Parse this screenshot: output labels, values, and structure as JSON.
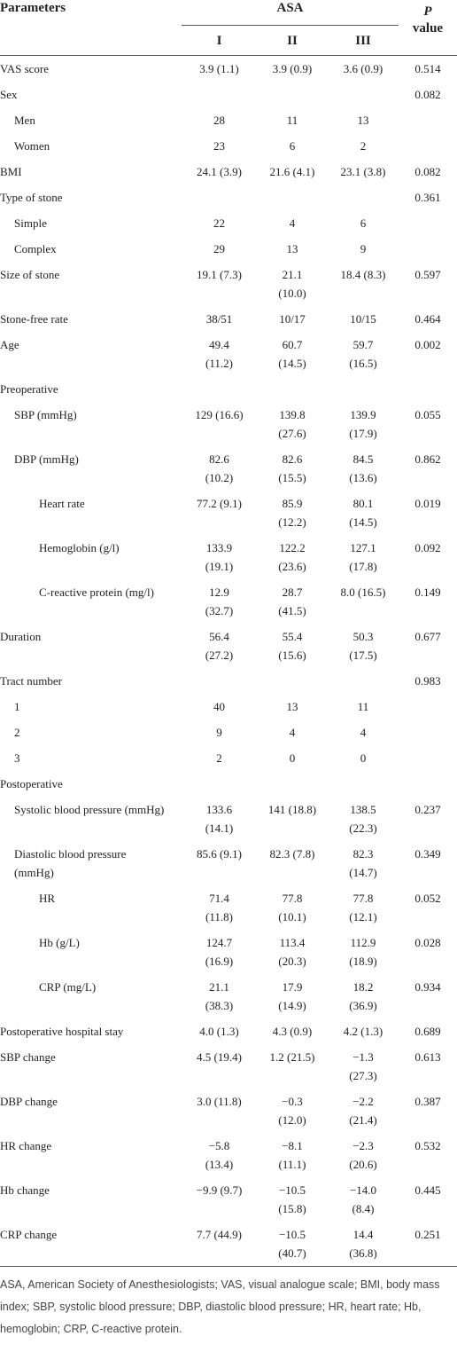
{
  "header": {
    "parameters": "Parameters",
    "asa": "ASA",
    "groups": [
      "I",
      "II",
      "III"
    ],
    "p": "P",
    "value": "value"
  },
  "rows": [
    [
      "VAS score",
      "3.9 (1.1)",
      "3.9 (0.9)",
      "3.6 (0.9)",
      "0.514"
    ],
    [
      "Sex",
      null,
      null,
      null,
      "0.082"
    ],
    [
      "Men",
      "28",
      "11",
      "13",
      null
    ],
    [
      "Women",
      "23",
      "6",
      "2",
      null
    ],
    [
      "BMI",
      "24.1 (3.9)",
      "21.6 (4.1)",
      "23.1 (3.8)",
      "0.082"
    ],
    [
      "Type of stone",
      null,
      null,
      null,
      "0.361"
    ],
    [
      "Simple",
      "22",
      "4",
      "6",
      null
    ],
    [
      "Complex",
      "29",
      "13",
      "9",
      null
    ],
    [
      "Size of stone",
      "19.1 (7.3)",
      "21.1 (10.0)",
      "18.4 (8.3)",
      "0.597"
    ],
    [
      "Stone-free rate",
      "38/51",
      "10/17",
      "10/15",
      "0.464"
    ],
    [
      "Age",
      "49.4 (11.2)",
      "60.7 (14.5)",
      "59.7 (16.5)",
      "0.002"
    ],
    [
      "Preoperative",
      null,
      null,
      null,
      null
    ],
    [
      "SBP (mmHg)",
      "129 (16.6)",
      "139.8 (27.6)",
      "139.9 (17.9)",
      "0.055"
    ],
    [
      "DBP (mmHg)",
      "82.6 (10.2)",
      "82.6 (15.5)",
      "84.5 (13.6)",
      "0.862"
    ],
    [
      "Heart rate",
      "77.2 (9.1)",
      "85.9 (12.2)",
      "80.1 (14.5)",
      "0.019"
    ],
    [
      "Hemoglobin (g/l)",
      "133.9 (19.1)",
      "122.2 (23.6)",
      "127.1 (17.8)",
      "0.092"
    ],
    [
      "C-reactive protein (mg/l)",
      "12.9 (32.7)",
      "28.7 (41.5)",
      "8.0 (16.5)",
      "0.149"
    ],
    [
      "Duration",
      "56.4 (27.2)",
      "55.4 (15.6)",
      "50.3 (17.5)",
      "0.677"
    ],
    [
      "Tract number",
      null,
      null,
      null,
      "0.983"
    ],
    [
      "1",
      "40",
      "13",
      "11",
      null
    ],
    [
      "2",
      "9",
      "4",
      "4",
      null
    ],
    [
      "3",
      "2",
      "0",
      "0",
      null
    ],
    [
      "Postoperative",
      null,
      null,
      null,
      null
    ],
    [
      "Systolic blood pressure (mmHg)",
      "133.6 (14.1)",
      "141 (18.8)",
      "138.5 (22.3)",
      "0.237"
    ],
    [
      "Diastolic blood pressure (mmHg)",
      "85.6 (9.1)",
      "82.3 (7.8)",
      "82.3 (14.7)",
      "0.349"
    ],
    [
      "HR",
      "71.4 (11.8)",
      "77.8 (10.1)",
      "77.8 (12.1)",
      "0.052"
    ],
    [
      "Hb (g/L)",
      "124.7 (16.9)",
      "113.4 (20.3)",
      "112.9 (18.9)",
      "0.028"
    ],
    [
      "CRP (mg/L)",
      "21.1 (38.3)",
      "17.9 (14.9)",
      "18.2 (36.9)",
      "0.934"
    ],
    [
      "Postoperative hospital stay",
      "4.0 (1.3)",
      "4.3 (0.9)",
      "4.2 (1.3)",
      "0.689"
    ],
    [
      "SBP change",
      "4.5 (19.4)",
      "1.2 (21.5)",
      "−1.3 (27.3)",
      "0.613"
    ],
    [
      "DBP change",
      "3.0 (11.8)",
      "−0.3 (12.0)",
      "−2.2 (21.4)",
      "0.387"
    ],
    [
      "HR change",
      "−5.8 (13.4)",
      "−8.1 (11.1)",
      "−2.3 (20.6)",
      "0.532"
    ],
    [
      "Hb change",
      "−9.9 (9.7)",
      "−10.5 (15.8)",
      "−14.0 (8.4)",
      "0.445"
    ],
    [
      "CRP change",
      "7.7 (44.9)",
      "−10.5 (40.7)",
      "14.4 (36.8)",
      "0.251"
    ]
  ],
  "footnote": "ASA, American Society of Anesthesiologists; VAS, visual analogue scale; BMI, body mass index; SBP, systolic blood pressure; DBP, diastolic blood pressure; HR, heart rate; Hb, hemoglobin; CRP, C-reactive protein."
}
